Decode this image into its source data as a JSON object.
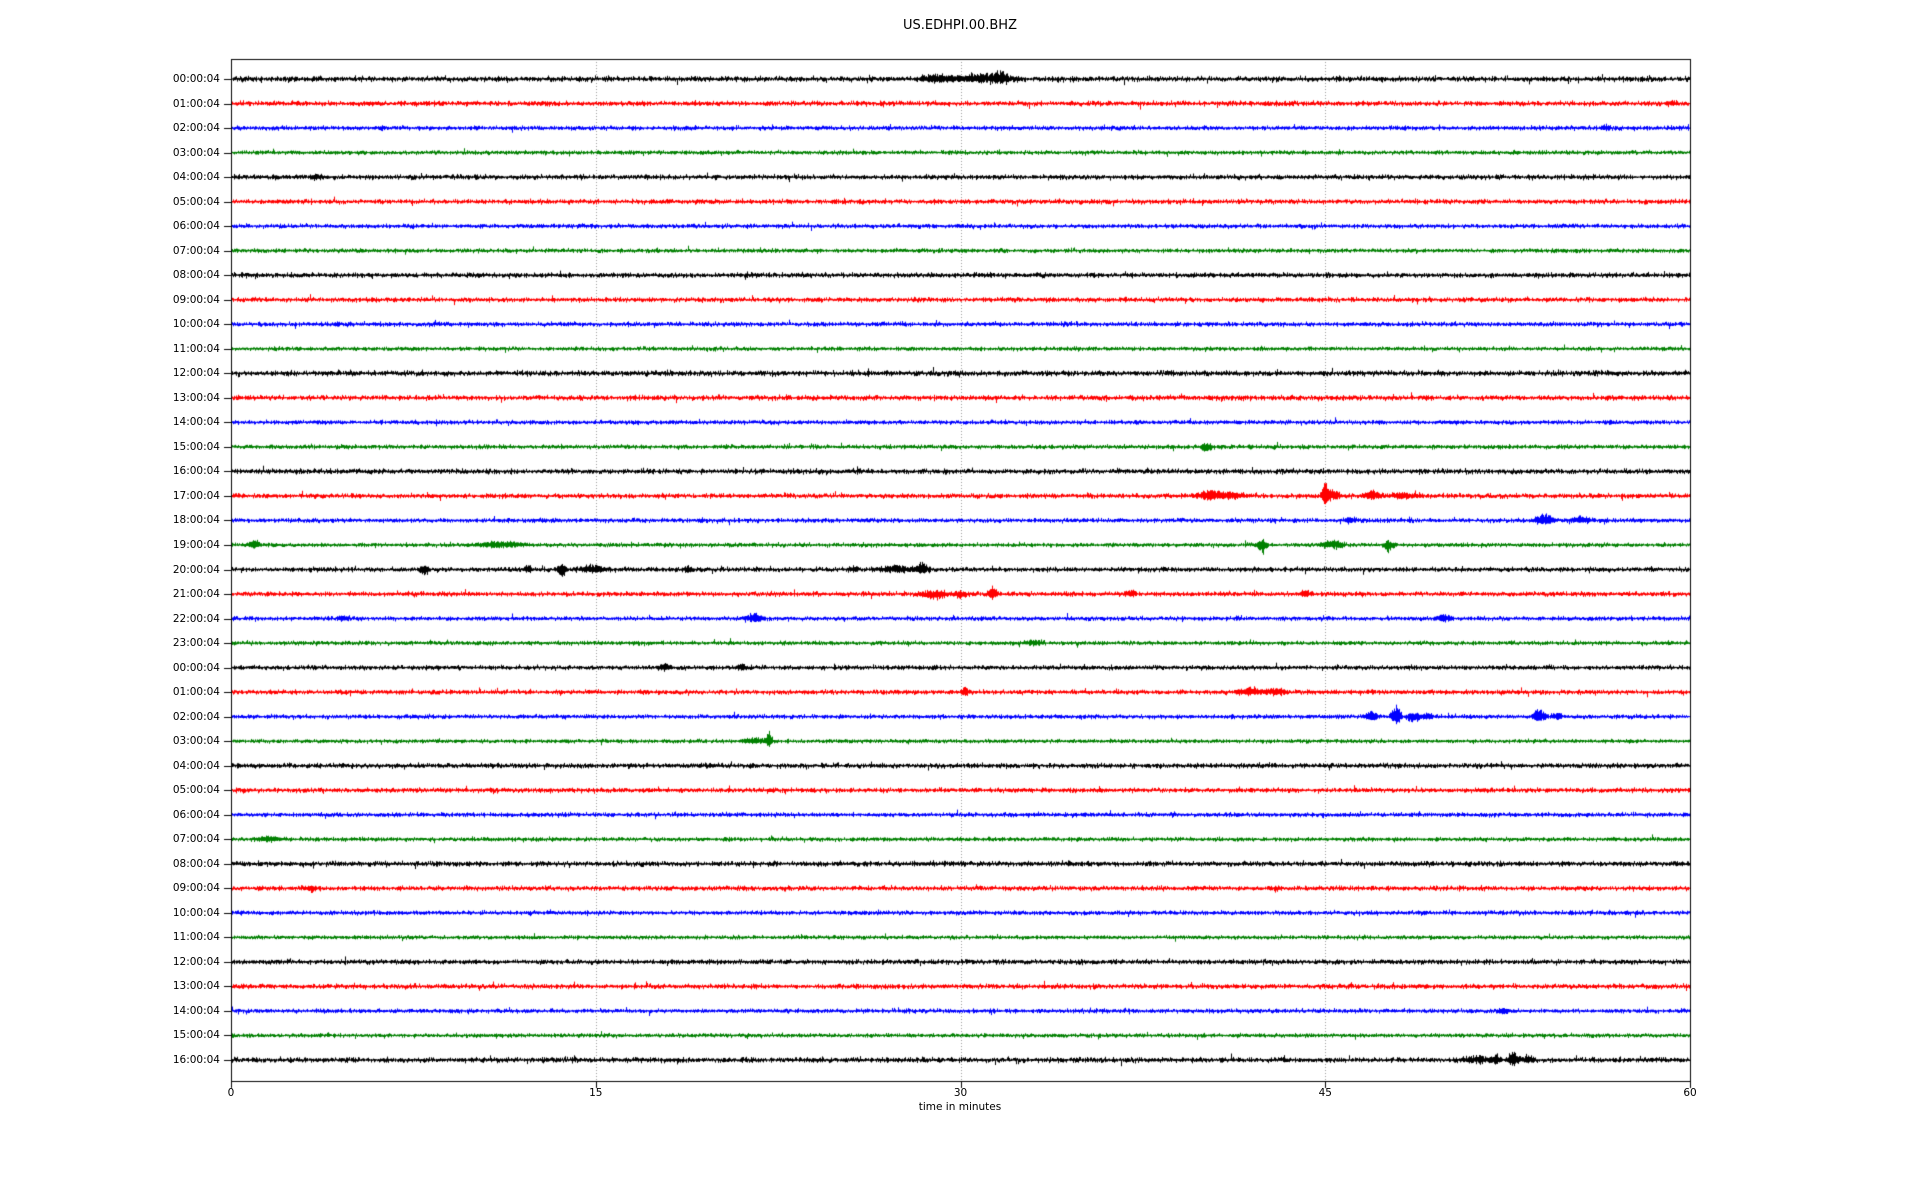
{
  "figure": {
    "title": "US.EDHPI.00.BHZ",
    "xlabel": "time in minutes"
  },
  "chart_data": {
    "type": "line",
    "subtype": "helicorder-dayplot",
    "title": "US.EDHPI.00.BHZ",
    "xlabel": "time in minutes",
    "xlim": [
      0,
      60
    ],
    "x_ticks": [
      0,
      15,
      30,
      45,
      60
    ],
    "grid_ticks": [
      15,
      30,
      45
    ],
    "grid_on": true,
    "color_cycle": [
      "#000000",
      "#ff0000",
      "#0000ff",
      "#008000"
    ],
    "grid_color": "#999999",
    "frame_color": "#000000",
    "minutes_per_row": 60,
    "events_format": "[minute, peak_amplitude_px_signed, half_width_minutes]",
    "rows": [
      {
        "label": "00:00:04",
        "noise": 2.8,
        "events": [
          [
            29.0,
            4,
            1.0
          ],
          [
            31.0,
            5,
            1.8
          ],
          [
            31.6,
            6,
            0.4
          ]
        ]
      },
      {
        "label": "01:00:04",
        "noise": 2.6,
        "events": [
          [
            59.2,
            3,
            0.3
          ]
        ]
      },
      {
        "label": "02:00:04",
        "noise": 2.2,
        "events": [
          [
            56.5,
            3,
            0.3
          ]
        ]
      },
      {
        "label": "03:00:04",
        "noise": 2.0,
        "events": []
      },
      {
        "label": "04:00:04",
        "noise": 2.5,
        "events": [
          [
            3.5,
            3,
            0.4
          ]
        ]
      },
      {
        "label": "05:00:04",
        "noise": 2.4,
        "events": []
      },
      {
        "label": "06:00:04",
        "noise": 2.1,
        "events": []
      },
      {
        "label": "07:00:04",
        "noise": 2.0,
        "events": []
      },
      {
        "label": "08:00:04",
        "noise": 2.5,
        "events": []
      },
      {
        "label": "09:00:04",
        "noise": 2.4,
        "events": []
      },
      {
        "label": "10:00:04",
        "noise": 2.2,
        "events": []
      },
      {
        "label": "11:00:04",
        "noise": 1.9,
        "events": []
      },
      {
        "label": "12:00:04",
        "noise": 2.8,
        "events": []
      },
      {
        "label": "13:00:04",
        "noise": 2.6,
        "events": []
      },
      {
        "label": "14:00:04",
        "noise": 2.1,
        "events": []
      },
      {
        "label": "15:00:04",
        "noise": 2.1,
        "events": [
          [
            40.1,
            -6,
            0.3
          ]
        ]
      },
      {
        "label": "16:00:04",
        "noise": 2.6,
        "events": []
      },
      {
        "label": "17:00:04",
        "noise": 2.4,
        "events": [
          [
            40.3,
            5,
            0.9
          ],
          [
            41.2,
            4,
            0.6
          ],
          [
            45.0,
            16,
            0.25
          ],
          [
            45.4,
            7,
            0.3
          ],
          [
            46.9,
            5,
            0.5
          ],
          [
            48.3,
            3,
            0.8
          ]
        ]
      },
      {
        "label": "18:00:04",
        "noise": 2.2,
        "events": [
          [
            46.0,
            3,
            0.4
          ],
          [
            54.0,
            7,
            0.5
          ],
          [
            55.5,
            3,
            0.7
          ]
        ]
      },
      {
        "label": "19:00:04",
        "noise": 2.0,
        "events": [
          [
            0.9,
            4,
            0.4
          ],
          [
            11.0,
            3,
            1.5
          ],
          [
            42.4,
            -9,
            0.3
          ],
          [
            45.3,
            5,
            0.6
          ],
          [
            47.6,
            -8,
            0.3
          ]
        ]
      },
      {
        "label": "20:00:04",
        "noise": 2.3,
        "events": [
          [
            7.9,
            -7,
            0.25
          ],
          [
            12.2,
            5,
            0.2
          ],
          [
            13.6,
            -8,
            0.25
          ],
          [
            14.9,
            5,
            0.7
          ],
          [
            18.8,
            3,
            0.3
          ],
          [
            25.6,
            4,
            0.3
          ],
          [
            27.3,
            4,
            1.0
          ],
          [
            28.4,
            7,
            0.4
          ]
        ]
      },
      {
        "label": "21:00:04",
        "noise": 2.4,
        "events": [
          [
            28.9,
            -5,
            0.8
          ],
          [
            30.0,
            -4,
            0.4
          ],
          [
            31.3,
            10,
            0.25
          ],
          [
            37.0,
            4,
            0.3
          ],
          [
            44.2,
            4,
            0.3
          ]
        ]
      },
      {
        "label": "22:00:04",
        "noise": 2.1,
        "events": [
          [
            4.6,
            4,
            0.3
          ],
          [
            21.5,
            6,
            0.5
          ],
          [
            49.9,
            4,
            0.4
          ]
        ]
      },
      {
        "label": "23:00:04",
        "noise": 2.0,
        "events": [
          [
            33.0,
            3,
            0.5
          ]
        ]
      },
      {
        "label": "00:00:04",
        "noise": 2.3,
        "events": [
          [
            17.8,
            4,
            0.4
          ],
          [
            21.0,
            3,
            0.3
          ]
        ]
      },
      {
        "label": "01:00:04",
        "noise": 2.3,
        "events": [
          [
            30.2,
            5,
            0.25
          ],
          [
            41.9,
            5,
            0.8
          ],
          [
            43.0,
            4,
            0.5
          ]
        ]
      },
      {
        "label": "02:00:04",
        "noise": 2.1,
        "events": [
          [
            46.9,
            5,
            0.4
          ],
          [
            47.9,
            12,
            0.3
          ],
          [
            48.6,
            -7,
            0.4
          ],
          [
            49.2,
            4,
            0.3
          ],
          [
            53.8,
            9,
            0.4
          ],
          [
            54.5,
            4,
            0.3
          ]
        ]
      },
      {
        "label": "03:00:04",
        "noise": 1.9,
        "events": [
          [
            21.5,
            3,
            0.7
          ],
          [
            22.1,
            10,
            0.2
          ]
        ]
      },
      {
        "label": "04:00:04",
        "noise": 2.5,
        "events": []
      },
      {
        "label": "05:00:04",
        "noise": 2.4,
        "events": []
      },
      {
        "label": "06:00:04",
        "noise": 2.2,
        "events": []
      },
      {
        "label": "07:00:04",
        "noise": 2.0,
        "events": [
          [
            1.5,
            3,
            0.8
          ]
        ]
      },
      {
        "label": "08:00:04",
        "noise": 2.6,
        "events": []
      },
      {
        "label": "09:00:04",
        "noise": 2.4,
        "events": [
          [
            3.3,
            -4,
            0.25
          ]
        ]
      },
      {
        "label": "10:00:04",
        "noise": 2.1,
        "events": []
      },
      {
        "label": "11:00:04",
        "noise": 1.9,
        "events": []
      },
      {
        "label": "12:00:04",
        "noise": 2.4,
        "events": []
      },
      {
        "label": "13:00:04",
        "noise": 2.5,
        "events": []
      },
      {
        "label": "14:00:04",
        "noise": 2.1,
        "events": [
          [
            52.3,
            -3,
            0.3
          ]
        ]
      },
      {
        "label": "15:00:04",
        "noise": 2.0,
        "events": []
      },
      {
        "label": "16:00:04",
        "noise": 2.6,
        "events": [
          [
            51.2,
            4,
            0.8
          ],
          [
            52.0,
            5,
            0.3
          ],
          [
            52.7,
            10,
            0.3
          ],
          [
            53.3,
            4,
            0.4
          ]
        ]
      }
    ]
  }
}
